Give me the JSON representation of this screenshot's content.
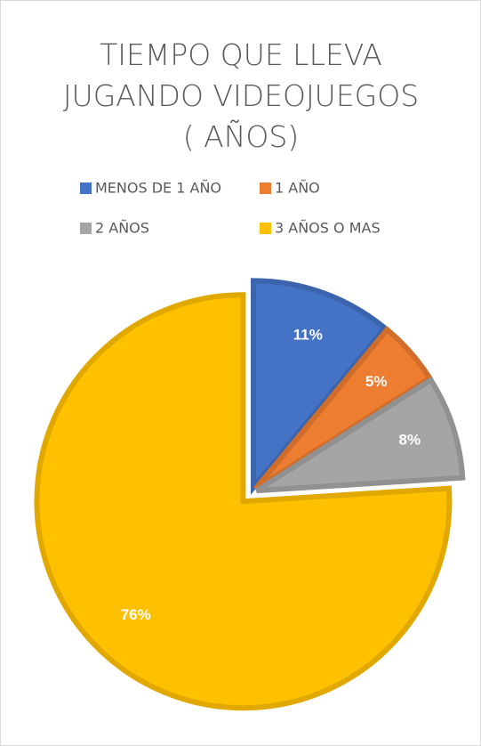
{
  "chart_data": {
    "type": "pie",
    "title": "TIEMPO QUE LLEVA JUGANDO VIDEOJUEGOS ( AÑOS)",
    "categories": [
      "MENOS DE 1 AÑO",
      "1 AÑO",
      "2 AÑOS",
      "3 AÑOS O MAS"
    ],
    "values": [
      11,
      5,
      8,
      76
    ],
    "value_labels": [
      "11%",
      "5%",
      "8%",
      "76%"
    ],
    "colors": [
      "#4472c4",
      "#ed7d31",
      "#a5a5a5",
      "#ffc000"
    ],
    "legend": "top"
  }
}
